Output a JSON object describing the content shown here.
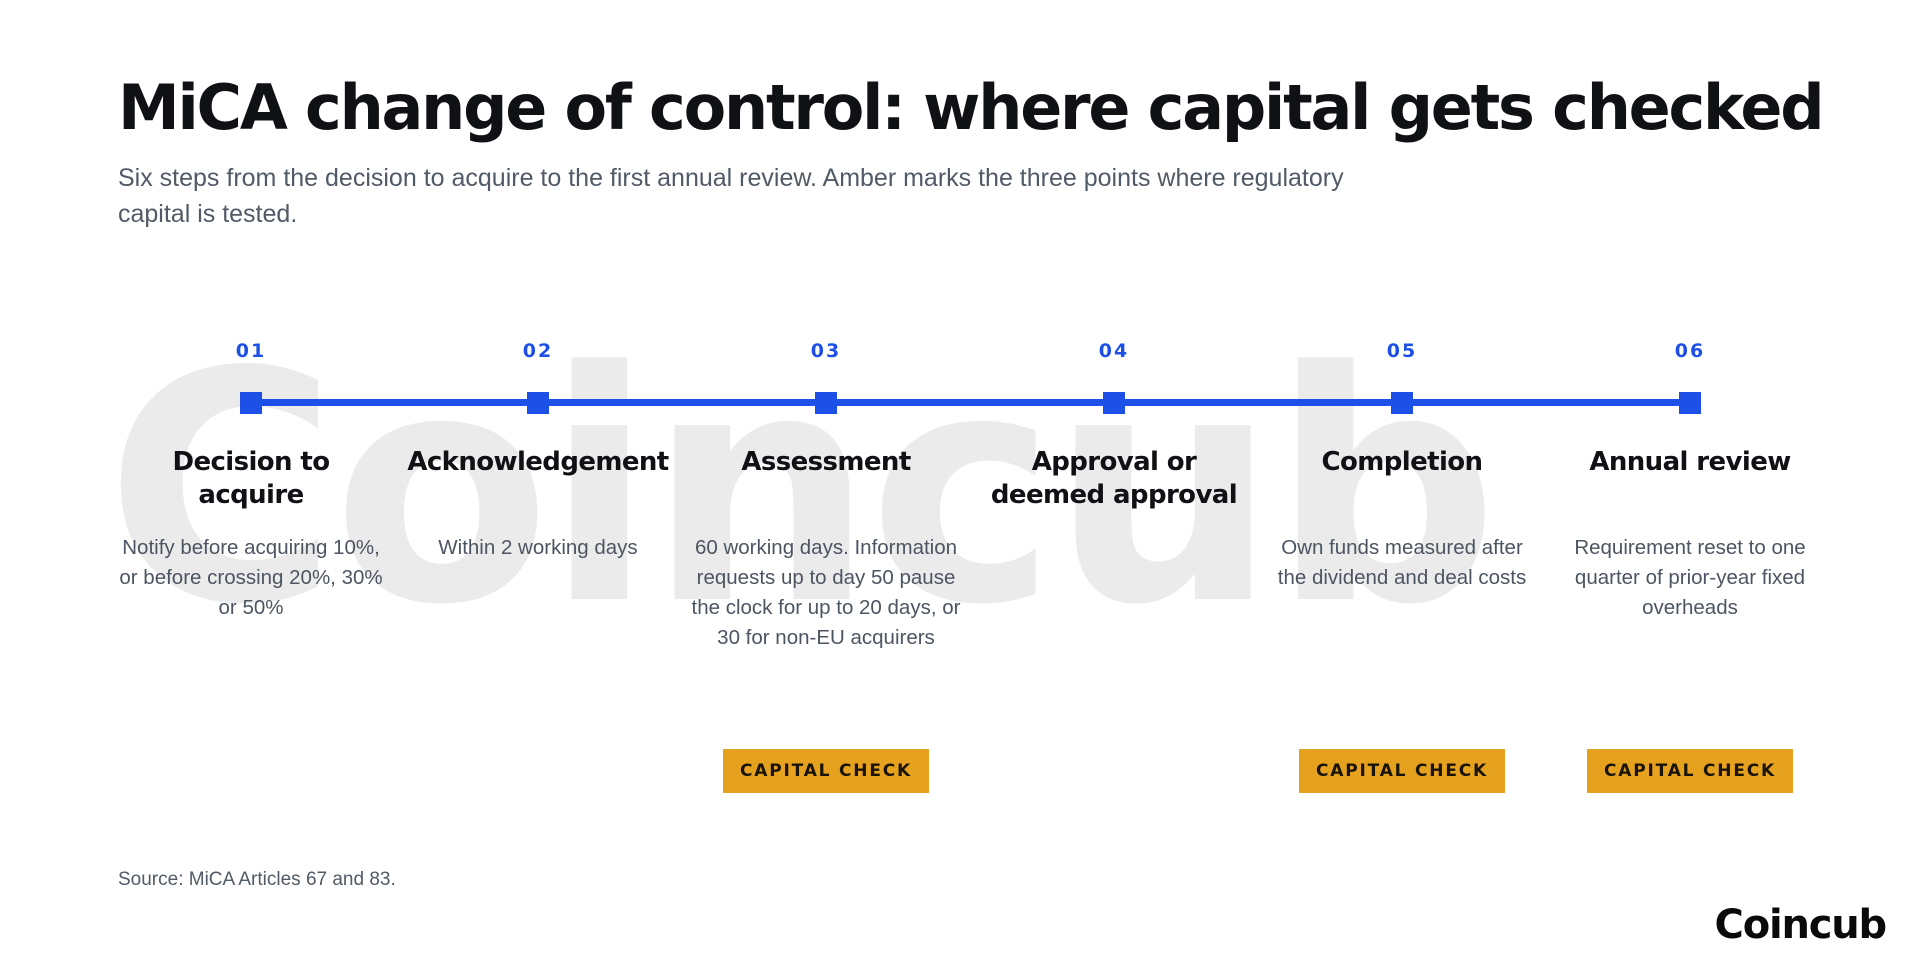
{
  "title": "MiCA change of control: where capital gets checked",
  "subtitle": "Six steps from the decision to acquire to the first annual review. Amber marks the three points where regulatory capital is tested.",
  "watermark": "Coincub",
  "colors": {
    "accent": "#1d50e6",
    "capital_check": "#e6a21e",
    "watermark": "#ebebeb"
  },
  "capital_check_label": "CAPITAL CHECK",
  "steps": [
    {
      "number": "01",
      "title": "Decision to acquire",
      "description": "Notify before acquiring 10%, or before crossing 20%, 30% or 50%",
      "capital_check": false
    },
    {
      "number": "02",
      "title": "Acknowledgement",
      "description": "Within 2 working days",
      "capital_check": false
    },
    {
      "number": "03",
      "title": "Assessment",
      "description": "60 working days. Information requests up to day 50 pause the clock for up to 20 days, or 30 for non-EU acquirers",
      "capital_check": true
    },
    {
      "number": "04",
      "title": "Approval or deemed approval",
      "description": "",
      "capital_check": false
    },
    {
      "number": "05",
      "title": "Completion",
      "description": "Own funds measured after the dividend and deal costs",
      "capital_check": true
    },
    {
      "number": "06",
      "title": "Annual review",
      "description": "Requirement reset to one quarter of prior-year fixed overheads",
      "capital_check": true
    }
  ],
  "source": "Source: MiCA Articles 67 and 83.",
  "brand": "Coincub"
}
